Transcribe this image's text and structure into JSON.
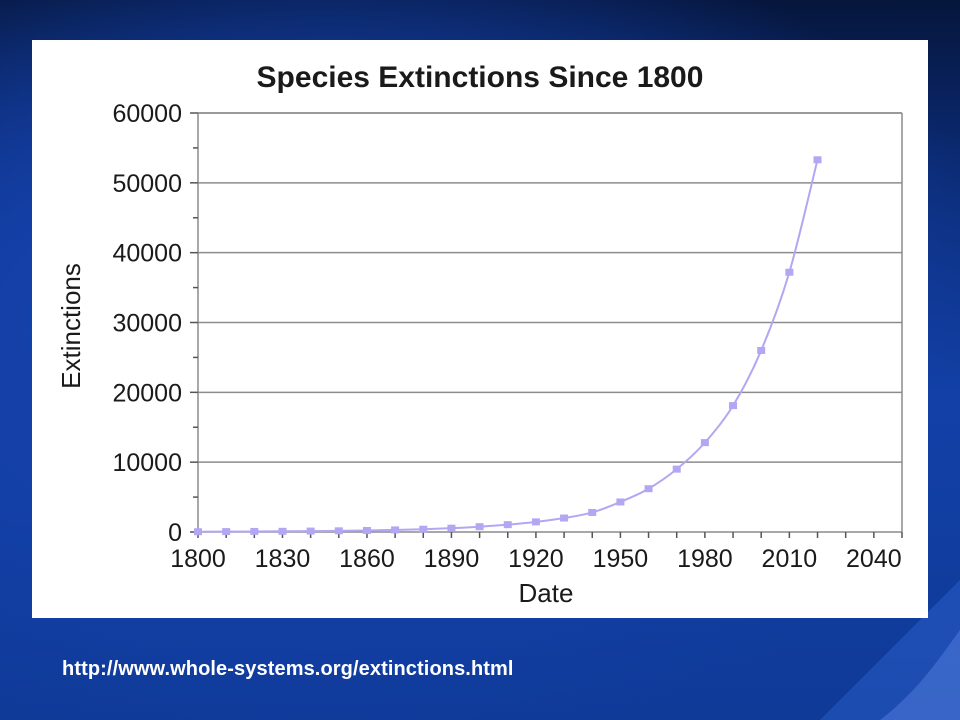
{
  "slide": {
    "source_url": "http://www.whole-systems.org/extinctions.html",
    "colors": {
      "background": "#1240a6",
      "panel": "#ffffff",
      "link_text": "#ffffff"
    }
  },
  "chart_data": {
    "type": "line",
    "title": "Species Extinctions Since 1800",
    "xlabel": "Date",
    "ylabel": "Extinctions",
    "xlim": [
      1800,
      2050
    ],
    "ylim": [
      0,
      60000
    ],
    "x_ticks": [
      1800,
      1830,
      1860,
      1890,
      1920,
      1950,
      1980,
      2010,
      2040
    ],
    "y_ticks": [
      0,
      10000,
      20000,
      30000,
      40000,
      50000,
      60000
    ],
    "grid": "horizontal",
    "legend": "none",
    "series_color": "#b4a6f2",
    "marker": "square",
    "series": [
      {
        "x": [
          1800,
          1810,
          1820,
          1830,
          1840,
          1850,
          1860,
          1870,
          1880,
          1890,
          1900,
          1910,
          1920,
          1930,
          1940,
          1950,
          1960,
          1970,
          1980,
          1990,
          2000,
          2010,
          2020
        ],
        "y": [
          40,
          60,
          80,
          100,
          130,
          170,
          220,
          300,
          400,
          550,
          760,
          1050,
          1450,
          2000,
          2800,
          4300,
          6200,
          9000,
          12800,
          18100,
          26000,
          37200,
          53300
        ]
      }
    ]
  }
}
